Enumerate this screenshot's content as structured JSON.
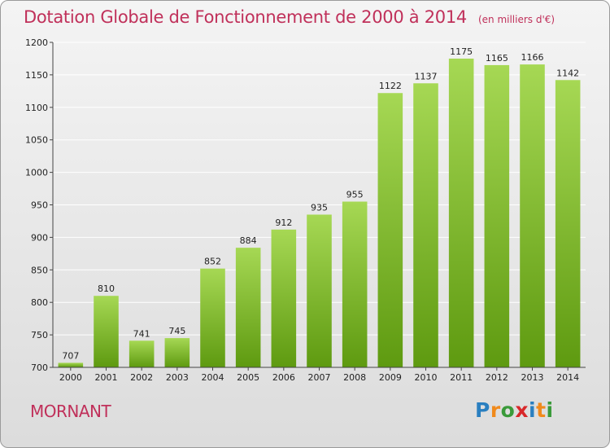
{
  "title": "Dotation Globale de Fonctionnement de 2000 à 2014",
  "subtitle": "(en milliers d'€)",
  "town": "MORNANT",
  "logo": {
    "letters": [
      "P",
      "r",
      "o",
      "x",
      "i",
      "t",
      "i"
    ],
    "colors": [
      "#2a7fc0",
      "#f08a1c",
      "#3a9a3a",
      "#d8282a",
      "#2a7fc0",
      "#f08a1c",
      "#3a9a3a"
    ]
  },
  "colors": {
    "bar_light": "#a6d854",
    "bar_dark": "#5e9a10",
    "grid": "#ffffff",
    "title": "#c0305a"
  },
  "chart_data": {
    "type": "bar",
    "title": "Dotation Globale de Fonctionnement de 2000 à 2014",
    "subtitle": "(en milliers d'€)",
    "categories": [
      "2000",
      "2001",
      "2002",
      "2003",
      "2004",
      "2005",
      "2006",
      "2007",
      "2008",
      "2009",
      "2010",
      "2011",
      "2012",
      "2013",
      "2014"
    ],
    "values": [
      707,
      810,
      741,
      745,
      852,
      884,
      912,
      935,
      955,
      1122,
      1137,
      1175,
      1165,
      1166,
      1142
    ],
    "ylim": [
      700,
      1200
    ],
    "yticks": [
      700,
      750,
      800,
      850,
      900,
      950,
      1000,
      1050,
      1100,
      1150,
      1200
    ],
    "grid": true,
    "legend": "none"
  }
}
